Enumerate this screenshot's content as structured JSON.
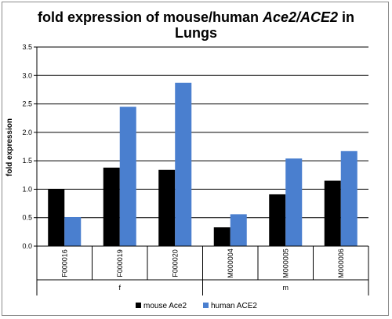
{
  "chart_data": {
    "type": "bar",
    "title_line1_prefix": "fold expression of mouse/human ",
    "title_line1_italic": "Ace2/ACE2",
    "title_line1_suffix": " in",
    "title_line2": "Lungs",
    "xlabel": "",
    "ylabel": "fold expression",
    "ylim": [
      0,
      3.5
    ],
    "yticks": [
      "0.0",
      "0.5",
      "1.0",
      "1.5",
      "2.0",
      "2.5",
      "3.0",
      "3.5"
    ],
    "grid": true,
    "categories": [
      "F000016",
      "F000019",
      "F000020",
      "M000004",
      "M000005",
      "M000006"
    ],
    "groups": [
      {
        "label": "f",
        "span": [
          0,
          2
        ]
      },
      {
        "label": "m",
        "span": [
          3,
          5
        ]
      }
    ],
    "series": [
      {
        "name": "mouse Ace2",
        "color": "#000000",
        "values": [
          1.0,
          1.38,
          1.34,
          0.33,
          0.91,
          1.15
        ]
      },
      {
        "name": "human ACE2",
        "color": "#4a7fcf",
        "values": [
          0.51,
          2.45,
          2.87,
          0.56,
          1.54,
          1.67
        ]
      }
    ],
    "legend_position": "bottom"
  }
}
